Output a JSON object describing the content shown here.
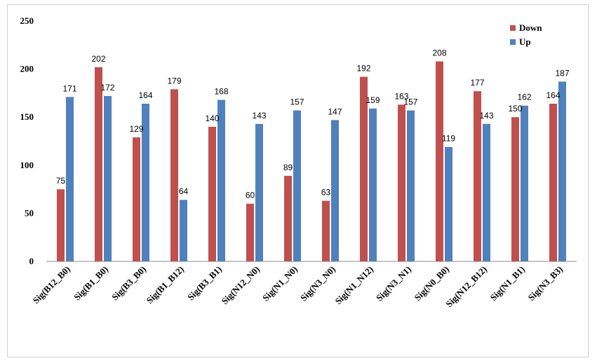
{
  "chart_data": {
    "type": "bar",
    "categories": [
      "Sig(B12_B0)",
      "Sig(B1_B0)",
      "Sig(B3_B0)",
      "Sig(B1_B12)",
      "Sig(B3_B1)",
      "Sig(N12_N0)",
      "Sig(N1_N0)",
      "Sig(N3_N0)",
      "Sig(N1_N12)",
      "Sig(N3_N1)",
      "Sig(N0_B0)",
      "Sig(N12_B12)",
      "Sig(N1_B1)",
      "Sig(N3_B3)"
    ],
    "series": [
      {
        "name": "Down",
        "color": "#C0504D",
        "values": [
          75,
          202,
          129,
          179,
          140,
          60,
          89,
          63,
          192,
          163,
          208,
          177,
          150,
          164
        ]
      },
      {
        "name": "Up",
        "color": "#4F81BD",
        "values": [
          171,
          172,
          164,
          64,
          168,
          143,
          157,
          147,
          159,
          157,
          119,
          143,
          162,
          187
        ]
      }
    ],
    "ylim": [
      0,
      250
    ],
    "yticks": [
      "0",
      "50",
      "100",
      "150",
      "200",
      "250"
    ],
    "grid": false,
    "legend_position": "top-right"
  }
}
